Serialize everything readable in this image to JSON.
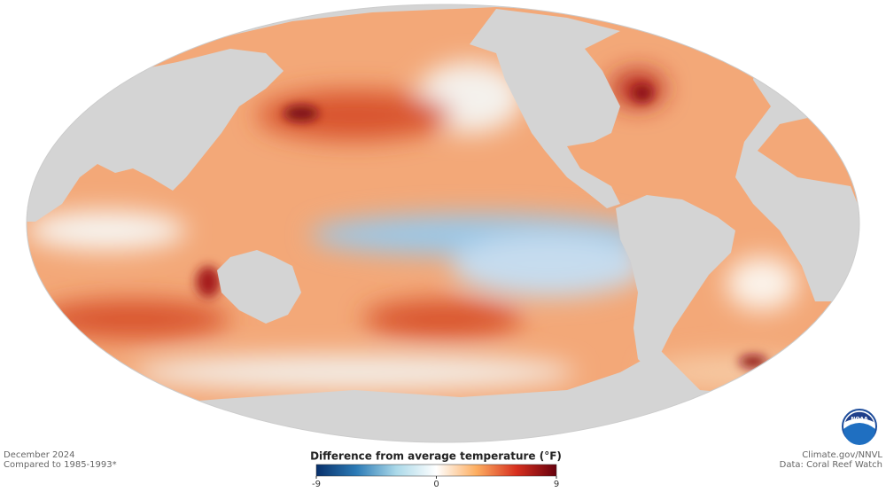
{
  "map": {
    "date": "December 2024",
    "baseline": "Compared to 1985-1993*",
    "credit": "Climate.gov/NNVL",
    "source": "Data: Coral Reef Watch",
    "logo": "NOAA"
  },
  "legend": {
    "title": "Difference from average temperature (°F)",
    "range": [
      -9,
      9
    ],
    "ticks": [
      -9,
      0,
      9
    ],
    "colors": [
      "#08306b",
      "#2c7bb6",
      "#abd9e9",
      "#ffffff",
      "#fdae61",
      "#d7301f",
      "#67000d"
    ]
  }
}
